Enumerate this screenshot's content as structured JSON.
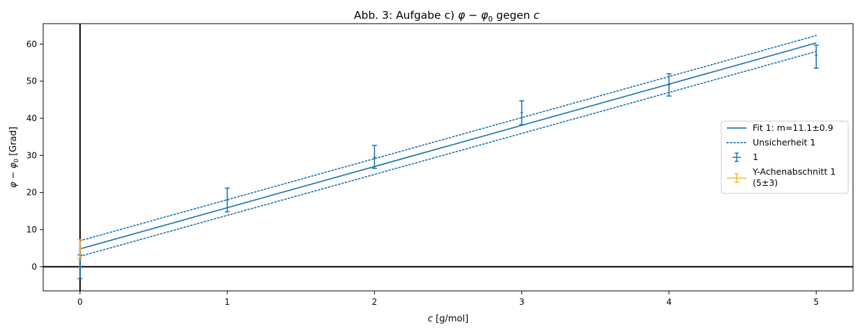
{
  "chart_data": {
    "type": "scatter",
    "title": "Abb. 3: Aufgabe c) φ − φ₀ gegen c",
    "title_parts": {
      "prefix": "Abb. 3: Aufgabe c) ",
      "phi": "φ",
      "minus": " − ",
      "phi0_base": "φ",
      "phi0_sub": "0",
      "middle": " gegen ",
      "c": "c"
    },
    "xlabel": "c [g/mol]",
    "xlabel_parts": {
      "var": "c",
      "unit": " [g/mol]"
    },
    "ylabel": "φ − φ₀ [Grad]",
    "ylabel_parts": {
      "phi": "φ",
      "minus": " − ",
      "phi0_base": "φ",
      "phi0_sub": "0",
      "unit": " [Grad]"
    },
    "xlim": [
      -0.25,
      5.25
    ],
    "ylim": [
      -6.5,
      65.5
    ],
    "xticks": [
      0,
      1,
      2,
      3,
      4,
      5
    ],
    "yticks": [
      0,
      10,
      20,
      30,
      40,
      50,
      60
    ],
    "grid": false,
    "legend_position": "center-right",
    "series": [
      {
        "name": "1",
        "kind": "errorbar",
        "color": "#1f77b4",
        "x": [
          0,
          1,
          2,
          3,
          4,
          5
        ],
        "y": [
          0.0,
          18.0,
          29.5,
          41.5,
          49.0,
          57.0
        ],
        "yerr_low": [
          3.2,
          3.2,
          3.0,
          3.2,
          3.0,
          3.5
        ],
        "yerr_high": [
          3.2,
          3.2,
          3.2,
          3.2,
          3.0,
          2.7
        ]
      },
      {
        "name": "Y-Achenabschnitt 1 (5±3)",
        "label_lines": [
          "Y-Achenabschnitt 1",
          "(5±3)"
        ],
        "kind": "errorbar",
        "color": "#f5b731",
        "x": [
          0
        ],
        "y": [
          4.8
        ],
        "yerr_low": [
          2.5
        ],
        "yerr_high": [
          2.5
        ]
      },
      {
        "name": "Fit 1: m=11.1±0.9",
        "kind": "line",
        "style": "solid",
        "color": "#1f77b4",
        "x": [
          0,
          5
        ],
        "y": [
          4.8,
          60.3
        ]
      },
      {
        "name": "Unsicherheit 1",
        "kind": "line",
        "style": "dotted",
        "color": "#1f77b4",
        "x": [
          0,
          5
        ],
        "y": [
          7.0,
          62.3
        ]
      },
      {
        "name": "Unsicherheit 1 (lower)",
        "kind": "line",
        "style": "dotted",
        "color": "#1f77b4",
        "x": [
          0,
          5
        ],
        "y": [
          2.8,
          58.0
        ]
      }
    ],
    "reference_lines": {
      "x0": 0,
      "y0": 0,
      "color": "#000000"
    }
  },
  "legend": {
    "entries": [
      {
        "kind": "line",
        "style": "solid",
        "color": "#1f77b4",
        "lines": [
          "Fit 1: m=11.1±0.9"
        ]
      },
      {
        "kind": "line",
        "style": "dotted",
        "color": "#1f77b4",
        "lines": [
          "Unsicherheit 1"
        ]
      },
      {
        "kind": "errorbar",
        "color": "#1f77b4",
        "lines": [
          "1"
        ]
      },
      {
        "kind": "errorbar-line",
        "color": "#f5b731",
        "lines": [
          "Y-Achenabschnitt 1",
          "(5±3)"
        ]
      }
    ]
  }
}
